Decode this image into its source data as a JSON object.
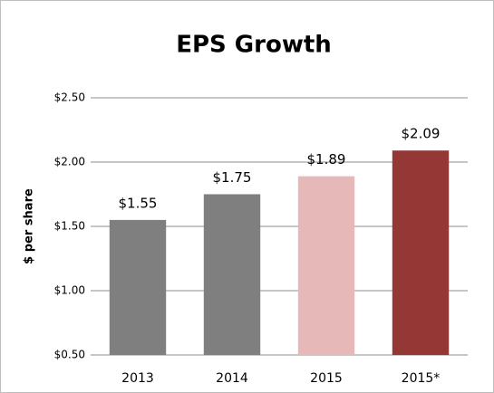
{
  "chart_data": {
    "type": "bar",
    "title": "EPS Growth",
    "y_label": "$ per share",
    "categories": [
      "2013",
      "2014",
      "2015",
      "2015*"
    ],
    "values": [
      1.55,
      1.75,
      1.89,
      2.09
    ],
    "value_labels": [
      "$1.55",
      "$1.75",
      "$1.89",
      "$2.09"
    ],
    "colors": [
      "#7f7f7f",
      "#7f7f7f",
      "#e6b9b8",
      "#953735"
    ],
    "ylim": [
      0.5,
      2.5
    ],
    "yticks": [
      {
        "value": 0.5,
        "label": "$0.50"
      },
      {
        "value": 1,
        "label": "$1.00"
      },
      {
        "value": 1.5,
        "label": "$1.50"
      },
      {
        "value": 2,
        "label": "$2.00"
      },
      {
        "value": 2.5,
        "label": "$2.50"
      }
    ],
    "grid": true
  }
}
